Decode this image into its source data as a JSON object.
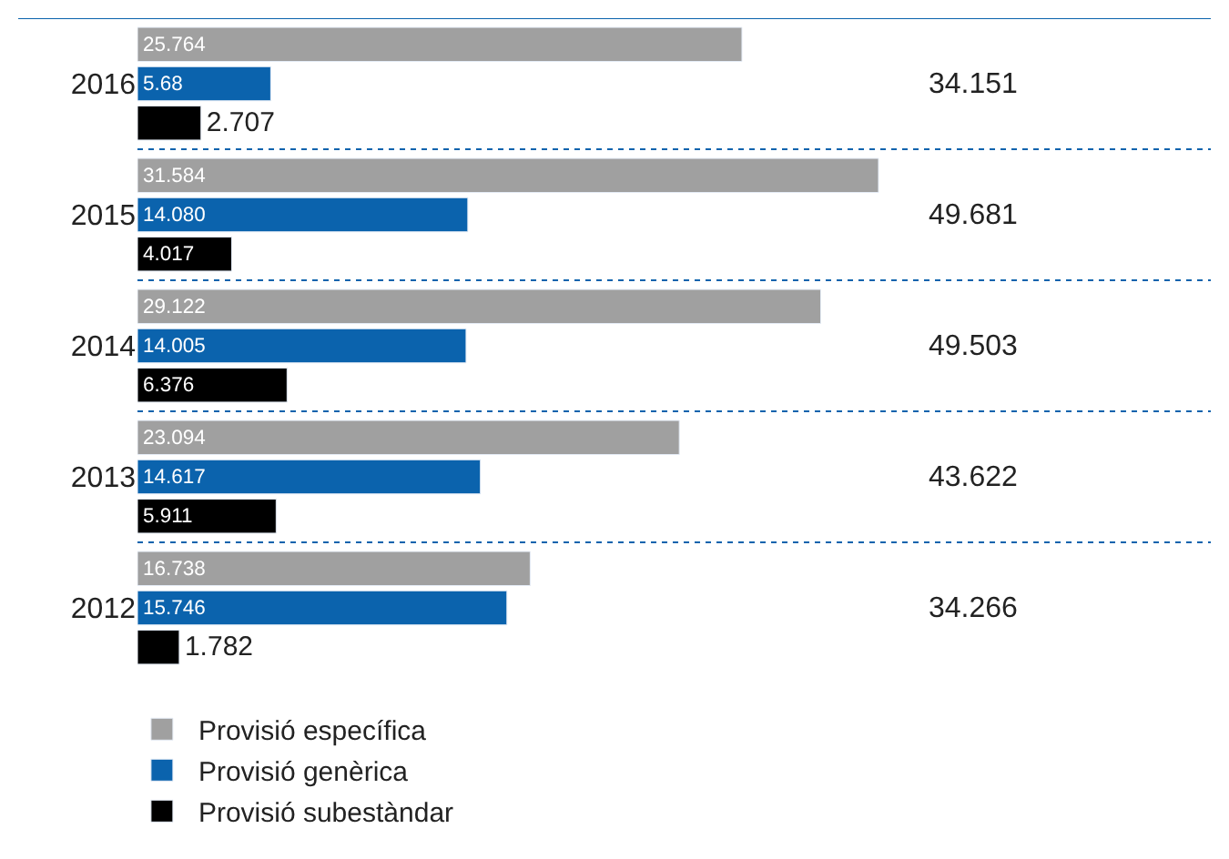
{
  "chart_data": {
    "type": "bar",
    "orientation": "horizontal",
    "categories": [
      "2016",
      "2015",
      "2014",
      "2013",
      "2012"
    ],
    "series": [
      {
        "name": "Provisió específica",
        "color": "#a0a0a0",
        "values": [
          25.764,
          31.584,
          29.122,
          23.094,
          16.738
        ],
        "value_labels": [
          "25.764",
          "31.584",
          "29.122",
          "23.094",
          "16.738"
        ]
      },
      {
        "name": "Provisió genèrica",
        "color": "#0b63ad",
        "values": [
          5.68,
          14.08,
          14.005,
          14.617,
          15.746
        ],
        "value_labels": [
          "5.68",
          "14.080",
          "14.005",
          "14.617",
          "15.746"
        ]
      },
      {
        "name": "Provisió subestàndar",
        "color": "#000000",
        "values": [
          2.707,
          4.017,
          6.376,
          5.911,
          1.782
        ],
        "value_labels": [
          "2.707",
          "4.017",
          "6.376",
          "5.911",
          "1.782"
        ]
      }
    ],
    "annotations": [
      "34.151",
      "49.681",
      "49.503",
      "43.622",
      "34.266"
    ],
    "legend": "bottom left"
  }
}
